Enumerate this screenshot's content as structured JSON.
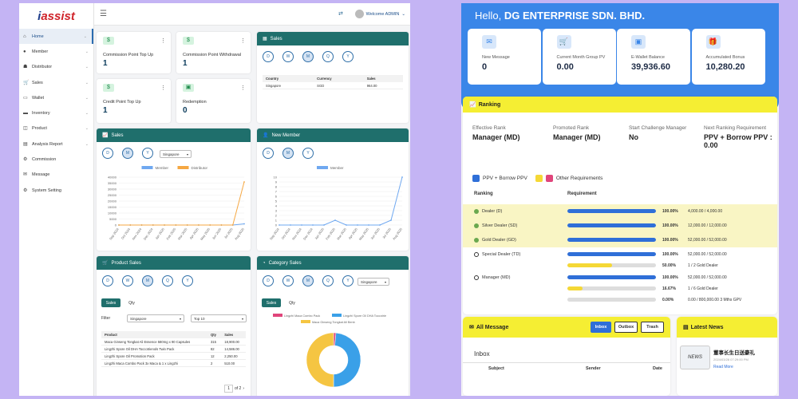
{
  "admin": {
    "logo": {
      "prefix": "i",
      "name": "assist"
    },
    "welcome": "Welcome ADMIN",
    "sidebar": [
      {
        "label": "Home",
        "icon": "home-icon",
        "active": true
      },
      {
        "label": "Member",
        "icon": "user-icon"
      },
      {
        "label": "Distributor",
        "icon": "users-icon"
      },
      {
        "label": "Sales",
        "icon": "cart-icon"
      },
      {
        "label": "Wallet",
        "icon": "wallet-icon"
      },
      {
        "label": "Inventory",
        "icon": "truck-icon"
      },
      {
        "label": "Product",
        "icon": "box-icon"
      },
      {
        "label": "Analysis Report",
        "icon": "report-icon"
      },
      {
        "label": "Commission",
        "icon": "gear-icon"
      },
      {
        "label": "Message",
        "icon": "mail-icon"
      },
      {
        "label": "System Setting",
        "icon": "gears-icon"
      }
    ],
    "kpis": [
      {
        "label": "Commission Point Top Up",
        "value": "1"
      },
      {
        "label": "Commission Point Withdrawal",
        "value": "1"
      },
      {
        "label": "Credit Point Top Up",
        "value": "1"
      },
      {
        "label": "Redemption",
        "value": "0"
      }
    ],
    "sales_table": {
      "title": "Sales",
      "headers": [
        "Country",
        "Currency",
        "Sales"
      ],
      "rows": [
        [
          "Singapore",
          "SGD",
          "964.00"
        ]
      ]
    },
    "sales_chart": {
      "title": "Sales",
      "select": "Singapore"
    },
    "member_chart": {
      "title": "New Member"
    },
    "product_sales": {
      "title": "Product Sales",
      "tabs": [
        "Sales",
        "Qty"
      ],
      "filter_label": "Filter",
      "filter_country": "Singapore",
      "filter_top": "Top 10",
      "headers": [
        "Product",
        "Qty",
        "Sales"
      ],
      "rows": [
        [
          "Maca Ginseng Tongkat Ali Essence 580mg x 90 Capsules",
          "315",
          "18,900.00"
        ],
        [
          "Lingzhi Spore Oil DHA Toccotrienols Twin Pack",
          "82",
          "14,586.00"
        ],
        [
          "Lingzhi Spore Oil Promotion Pack",
          "12",
          "2,250.00"
        ],
        [
          "Lingzhi Maca Combo Pack 3x Maca & 1 x Lingzhi",
          "2",
          "510.00"
        ]
      ],
      "pager": {
        "page": "1",
        "of": "of 2"
      }
    },
    "category_sales": {
      "title": "Category Sales",
      "select": "Singapore",
      "tabs": [
        "Sales",
        "Qty"
      ]
    }
  },
  "chart_data": [
    {
      "type": "line",
      "title": "Sales",
      "categories": [
        "Sep 2024",
        "Oct 2024",
        "Nov 2024",
        "Dec 2024",
        "Jan 2025",
        "Feb 2025",
        "Mar 2025",
        "Apr 2025",
        "May 2025",
        "Jun 2025",
        "Jul 2025",
        "Aug 2025"
      ],
      "series": [
        {
          "name": "Member",
          "color": "#6fa8f0",
          "values": [
            0,
            0,
            0,
            0,
            0,
            0,
            0,
            0,
            0,
            0,
            0,
            1000
          ]
        },
        {
          "name": "Distributor",
          "color": "#f5a742",
          "values": [
            0,
            0,
            0,
            0,
            0,
            0,
            0,
            0,
            0,
            0,
            0,
            36000
          ]
        }
      ],
      "yticks": [
        "0",
        "5000",
        "10000",
        "15000",
        "20000",
        "25000",
        "30000",
        "35000",
        "40000"
      ],
      "ylim": [
        0,
        40000
      ]
    },
    {
      "type": "line",
      "title": "New Member",
      "categories": [
        "Sep 2024",
        "Oct 2024",
        "Nov 2024",
        "Dec 2024",
        "Jan 2025",
        "Feb 2025",
        "Mar 2025",
        "Apr 2025",
        "May 2025",
        "Jun 2025",
        "Jul 2025",
        "Aug 2025"
      ],
      "series": [
        {
          "name": "Member",
          "color": "#6fa8f0",
          "values": [
            0,
            0,
            0,
            0,
            0,
            1,
            0,
            0,
            0,
            0,
            1,
            10
          ]
        }
      ],
      "yticks": [
        "0",
        "1",
        "2",
        "3",
        "4",
        "5",
        "6",
        "7",
        "8",
        "9",
        "10"
      ],
      "ylim": [
        0,
        10
      ]
    },
    {
      "type": "pie",
      "title": "Category Sales",
      "series": [
        {
          "name": "Lingzhi Maca Combo Pack",
          "color": "#e0457b",
          "value": 1.4
        },
        {
          "name": "Lingzhi Spore Oil DHA Toccotrie",
          "color": "#3aa0e8",
          "value": 48.6
        },
        {
          "name": "Maca Ginseng Tongkat Ali Benb",
          "color": "#f5c542",
          "value": 50
        }
      ]
    }
  ],
  "portal": {
    "greeting_prefix": "Hello, ",
    "company": "DG ENTERPRISE SDN. BHD.",
    "stats": [
      {
        "label": "New Message",
        "value": "0",
        "icon": "message-icon"
      },
      {
        "label": "Current Month Group PV",
        "value": "0.00",
        "icon": "cart-icon"
      },
      {
        "label": "E-Wallet Balance",
        "value": "39,936.60",
        "icon": "wallet-icon"
      },
      {
        "label": "Accumulated Bonus",
        "value": "10,280.20",
        "icon": "gift-icon"
      }
    ],
    "ranking": {
      "title": "Ranking",
      "effective_label": "Effective Rank",
      "effective_value": "Manager (MD)",
      "promoted_label": "Promoted Rank",
      "promoted_value": "Manager (MD)",
      "challenge_label": "Start Challenge Manager",
      "challenge_value": "No",
      "next_label": "Next Ranking Requirement",
      "next_value": "PPV + Borrow PPV : 0.00",
      "legend": [
        "PPV + Borrow PPV",
        "Other Requirements"
      ],
      "col_rank": "Ranking",
      "col_req": "Requirement",
      "rows": [
        {
          "name": "Dealer (D)",
          "done": true,
          "pct": "100.00%",
          "req": "4,000.00 / 4,000.00",
          "fill": 1,
          "color": "#2f6fd8"
        },
        {
          "name": "Silver Dealer (SD)",
          "done": true,
          "pct": "100.00%",
          "req": "12,000.00 / 12,000.00",
          "fill": 1,
          "color": "#2f6fd8"
        },
        {
          "name": "Gold Dealer (GD)",
          "done": true,
          "pct": "100.00%",
          "req": "52,000.00 / 52,000.00",
          "fill": 1,
          "color": "#2f6fd8"
        },
        {
          "name": "Special Dealer (TD)",
          "done": false,
          "pct": "100.00%",
          "req": "52,000.00 / 52,000.00",
          "fill": 1,
          "color": "#2f6fd8"
        },
        {
          "name": "",
          "done": null,
          "pct": "50.00%",
          "req": "1 / 2 Gold Dealer",
          "fill": 0.5,
          "color": "#f5d836"
        },
        {
          "name": "Manager (MD)",
          "done": false,
          "pct": "100.00%",
          "req": "52,000.00 / 52,000.00",
          "fill": 1,
          "color": "#2f6fd8"
        },
        {
          "name": "",
          "done": null,
          "pct": "16.67%",
          "req": "1 / 6 Gold Dealer",
          "fill": 0.1667,
          "color": "#f5d836"
        },
        {
          "name": "",
          "done": null,
          "pct": "0.00%",
          "req": "0.00 / 800,000.00 3 Mths GPV",
          "fill": 0,
          "color": "#2f6fd8"
        }
      ]
    },
    "messages": {
      "title": "All Message",
      "tabs": [
        "Inbox",
        "Outbox",
        "Trash"
      ],
      "inbox": "Inbox",
      "cols": [
        "Subject",
        "Sender",
        "Date"
      ]
    },
    "news": {
      "title": "Latest News",
      "headline": "董事长生日送豪礼",
      "date": "2024/03/28 07:29:00 PM",
      "more": "Read More",
      "thumb": "NEWS"
    }
  }
}
